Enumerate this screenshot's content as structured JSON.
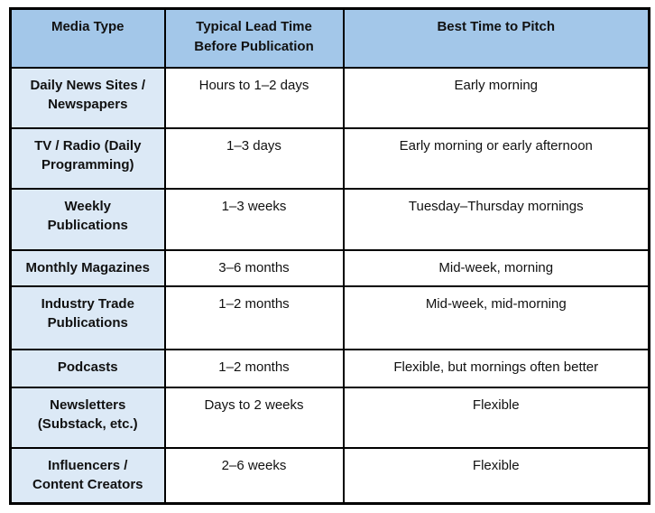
{
  "colors": {
    "header-bg": "#A3C7E9",
    "rowhead-bg": "#DCE9F6",
    "border": "#000000",
    "text": "#111111",
    "page-bg": "#ffffff"
  },
  "chart_data": {
    "type": "table",
    "title": "",
    "columns": [
      "Media Type",
      "Typical Lead Time\nBefore Publication",
      "Best Time to Pitch"
    ],
    "rows": [
      [
        "Daily News Sites /\nNewspapers",
        "Hours to 1–2 days",
        "Early morning"
      ],
      [
        "TV / Radio (Daily\nProgramming)",
        "1–3 days",
        "Early morning or early afternoon"
      ],
      [
        "Weekly\nPublications",
        "1–3 weeks",
        "Tuesday–Thursday mornings"
      ],
      [
        "Monthly Magazines",
        "3–6 months",
        "Mid-week, morning"
      ],
      [
        "Industry Trade\nPublications",
        "1–2 months",
        "Mid-week, mid-morning"
      ],
      [
        "Podcasts",
        "1–2 months",
        "Flexible, but mornings often better"
      ],
      [
        "Newsletters\n(Substack, etc.)",
        "Days to 2 weeks",
        "Flexible"
      ],
      [
        "Influencers /\nContent Creators",
        "2–6 weeks",
        "Flexible"
      ]
    ],
    "layout": {
      "header_fill": "#A3C7E9",
      "first_column_fill": "#DCE9F6",
      "body_fill": "#ffffff",
      "gridlines": true,
      "border_color": "#000000"
    }
  }
}
